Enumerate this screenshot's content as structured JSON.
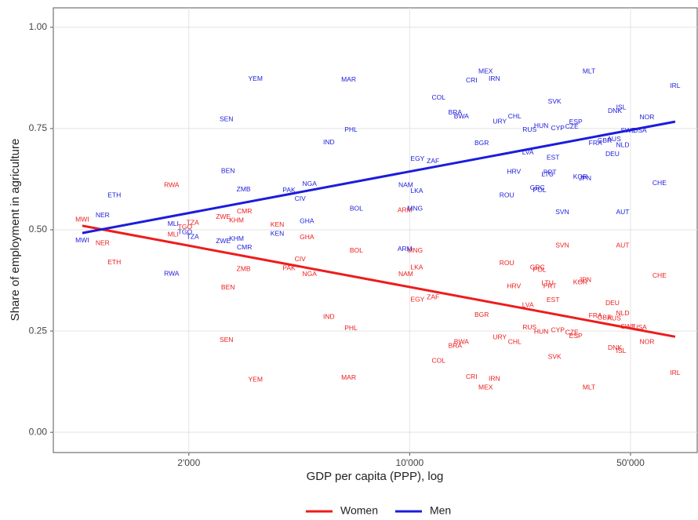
{
  "chart_data": {
    "type": "scatter",
    "xlabel": "GDP per capita (PPP), log",
    "ylabel": "Share of employment in agriculture",
    "xscale": "log",
    "xlim": [
      745,
      81300
    ],
    "ylim": [
      -0.05,
      1.048
    ],
    "xticks": [
      {
        "value": 2000,
        "label": "2'000"
      },
      {
        "value": 10000,
        "label": "10'000"
      },
      {
        "value": 50000,
        "label": "50'000"
      }
    ],
    "yticks": [
      {
        "value": 0,
        "label": "0.00"
      },
      {
        "value": 0.25,
        "label": "0.25"
      },
      {
        "value": 0.5,
        "label": "0.50"
      },
      {
        "value": 0.75,
        "label": "0.75"
      },
      {
        "value": 1,
        "label": "1.00"
      }
    ],
    "grid": true,
    "legend": "bottom",
    "categories": [
      "MWI",
      "NER",
      "ETH",
      "RWA",
      "MLI",
      "TGO",
      "TZA",
      "ZWE",
      "SEN",
      "BEN",
      "KHM",
      "ZMB",
      "CMR",
      "YEM",
      "KEN",
      "PAK",
      "CIV",
      "GHA",
      "NGA",
      "IND",
      "MAR",
      "PHL",
      "BOL",
      "ARM",
      "NAM",
      "MNG",
      "LKA",
      "EGY",
      "ZAF",
      "COL",
      "BRA",
      "BWA",
      "CRI",
      "BGR",
      "MEX",
      "IRN",
      "URY",
      "ROU",
      "HRV",
      "CHL",
      "LVA",
      "RUS",
      "GRC",
      "POL",
      "HUN",
      "LTU",
      "PRT",
      "EST",
      "SVK",
      "CYP",
      "SVN",
      "CZE",
      "ESP",
      "KOR",
      "JPN",
      "MLT",
      "FRA",
      "GBR",
      "DEU",
      "AUS",
      "DNK",
      "ISL",
      "AUT",
      "NLD",
      "SWE",
      "USA",
      "NOR",
      "CHE",
      "IRL"
    ],
    "x": [
      920,
      1067,
      1162,
      1764,
      1784,
      1945,
      2057,
      2570,
      2630,
      2660,
      2831,
      2981,
      3000,
      3250,
      3810,
      4150,
      4500,
      4730,
      4820,
      5550,
      6410,
      6520,
      6780,
      9660,
      9720,
      10400,
      10530,
      10590,
      11860,
      12350,
      13930,
      14580,
      15700,
      16900,
      17400,
      18530,
      19280,
      20290,
      21370,
      21490,
      23670,
      23950,
      25360,
      25780,
      26080,
      27310,
      27790,
      28430,
      28760,
      29430,
      30420,
      32600,
      33560,
      34690,
      35910,
      36950,
      38700,
      41420,
      43850,
      44360,
      44620,
      46690,
      47230,
      47230,
      49180,
      53550,
      56360,
      61760,
      69240
    ],
    "fit_x": [
      920,
      69240
    ],
    "series": [
      {
        "name": "Women",
        "color": "#ee1c1c",
        "values": [
          0.525,
          0.467,
          0.419,
          0.61,
          0.488,
          0.506,
          0.517,
          0.531,
          0.227,
          0.357,
          0.523,
          0.403,
          0.545,
          0.13,
          0.512,
          0.405,
          0.427,
          0.481,
          0.39,
          0.285,
          0.134,
          0.256,
          0.448,
          0.548,
          0.39,
          0.448,
          0.407,
          0.327,
          0.333,
          0.176,
          0.213,
          0.223,
          0.136,
          0.289,
          0.11,
          0.132,
          0.234,
          0.417,
          0.36,
          0.223,
          0.314,
          0.258,
          0.407,
          0.401,
          0.248,
          0.368,
          0.36,
          0.326,
          0.186,
          0.252,
          0.461,
          0.246,
          0.237,
          0.37,
          0.376,
          0.11,
          0.287,
          0.283,
          0.318,
          0.281,
          0.208,
          0.2,
          0.461,
          0.293,
          0.26,
          0.258,
          0.223,
          0.386,
          0.146
        ],
        "fit": [
          0.51,
          0.236
        ]
      },
      {
        "name": "Men",
        "color": "#1c1cdc",
        "values": [
          0.473,
          0.535,
          0.585,
          0.391,
          0.514,
          0.494,
          0.482,
          0.471,
          0.773,
          0.645,
          0.477,
          0.599,
          0.456,
          0.872,
          0.49,
          0.597,
          0.576,
          0.521,
          0.613,
          0.715,
          0.87,
          0.746,
          0.552,
          0.452,
          0.61,
          0.552,
          0.595,
          0.675,
          0.669,
          0.826,
          0.789,
          0.779,
          0.868,
          0.713,
          0.891,
          0.872,
          0.767,
          0.585,
          0.643,
          0.779,
          0.69,
          0.746,
          0.603,
          0.597,
          0.756,
          0.636,
          0.641,
          0.678,
          0.816,
          0.75,
          0.543,
          0.754,
          0.766,
          0.63,
          0.626,
          0.891,
          0.713,
          0.719,
          0.686,
          0.723,
          0.793,
          0.802,
          0.543,
          0.709,
          0.744,
          0.744,
          0.777,
          0.615,
          0.855
        ],
        "fit": [
          0.492,
          0.767
        ]
      }
    ]
  }
}
